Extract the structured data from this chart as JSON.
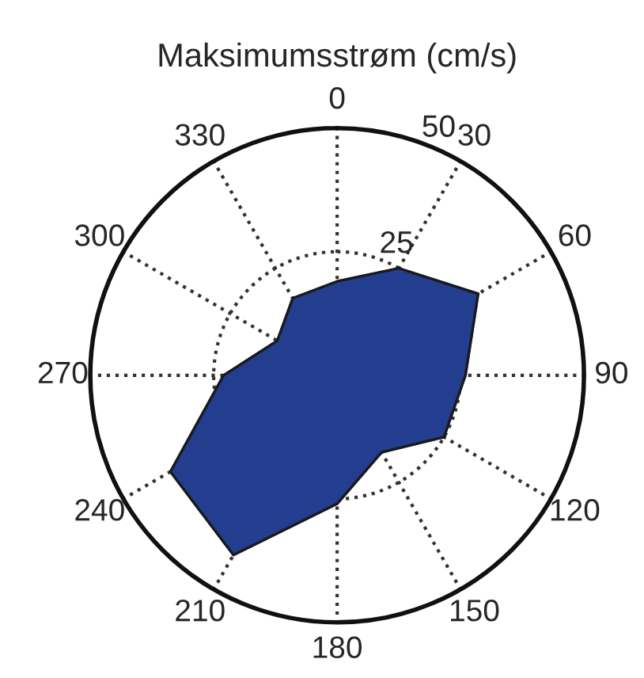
{
  "chart_data": {
    "type": "radar",
    "title": "Maksimumsstrøm (cm/s)",
    "categories": [
      "0",
      "30",
      "60",
      "90",
      "120",
      "150",
      "180",
      "210",
      "240",
      "270",
      "300",
      "330"
    ],
    "series": [
      {
        "color": "#233d8f",
        "values": [
          19,
          25,
          33,
          26,
          25,
          18,
          26,
          42,
          39,
          23,
          14,
          18
        ]
      }
    ],
    "ylim": [
      0,
      50
    ],
    "yticks": [
      25,
      50
    ],
    "grid": true
  }
}
